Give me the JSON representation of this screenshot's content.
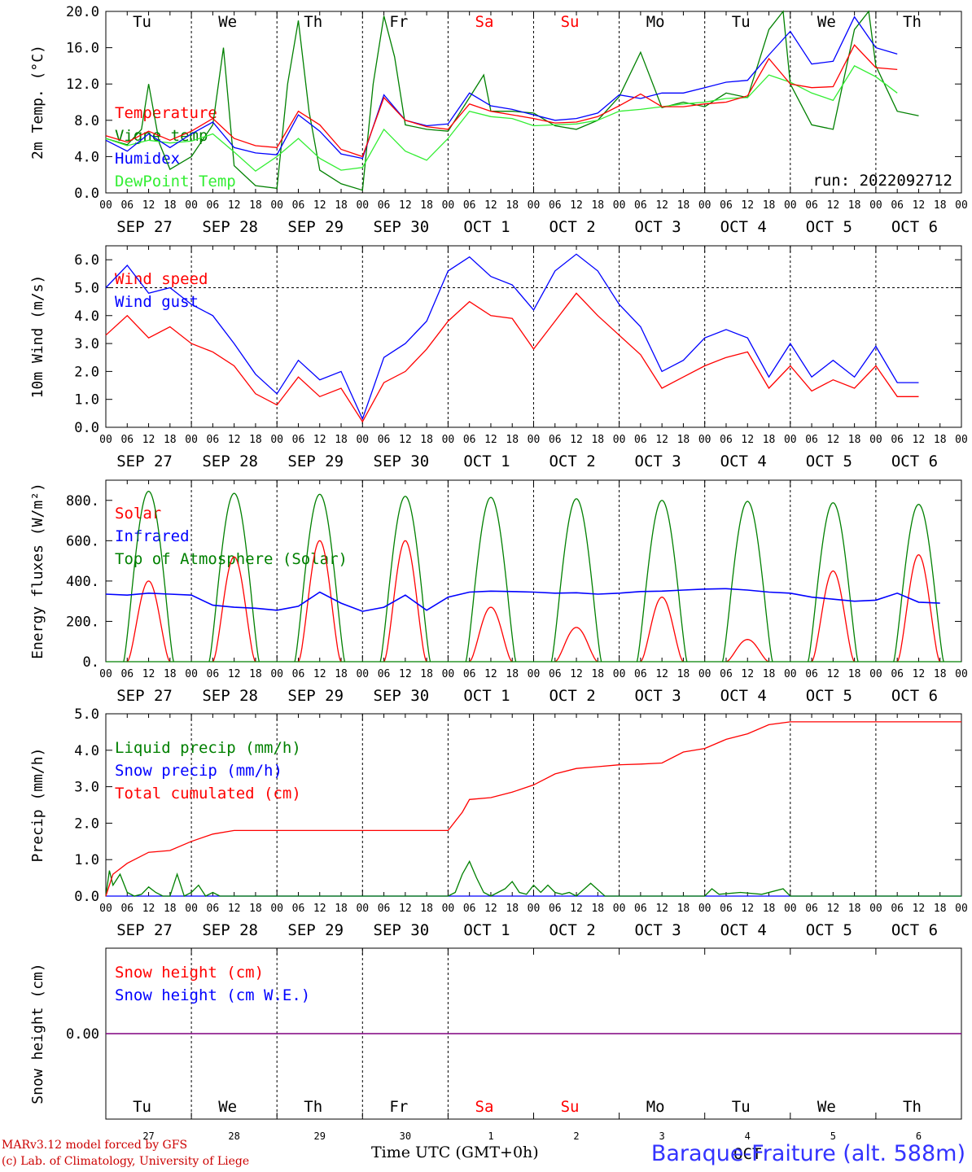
{
  "run_label": "run: 2022092712",
  "weekdays": [
    {
      "label": "Tu",
      "color": "#000000"
    },
    {
      "label": "We",
      "color": "#000000"
    },
    {
      "label": "Th",
      "color": "#000000"
    },
    {
      "label": "Fr",
      "color": "#000000"
    },
    {
      "label": "Sa",
      "color": "#ff0000"
    },
    {
      "label": "Su",
      "color": "#ff0000"
    },
    {
      "label": "Mo",
      "color": "#000000"
    },
    {
      "label": "Tu",
      "color": "#000000"
    },
    {
      "label": "We",
      "color": "#000000"
    },
    {
      "label": "Th",
      "color": "#000000"
    }
  ],
  "dates": [
    "SEP 27",
    "SEP 28",
    "SEP 29",
    "SEP 30",
    "OCT  1",
    "OCT  2",
    "OCT  3",
    "OCT  4",
    "OCT  5",
    "OCT  6"
  ],
  "hour_ticks": [
    "00",
    "06",
    "12",
    "18"
  ],
  "bottom_day_numbers": [
    "27",
    "28",
    "29",
    "30",
    "1",
    "2",
    "3",
    "4",
    "5",
    "6"
  ],
  "bottom_month": "OCT",
  "footer": {
    "model_line": "MARv3.12 model forced by GFS",
    "credit_line": "(c) Lab. of Climatology, University of Liege",
    "time_label": "Time UTC (GMT+0h)",
    "station": "Baraque-Fraiture (alt. 588m)"
  },
  "chart_data": [
    {
      "type": "line",
      "ylabel": "2m Temp. (°C)",
      "ylim": [
        0,
        20
      ],
      "yticks": [
        "0.0",
        "4.0",
        "8.0",
        "12.0",
        "16.0",
        "20.0"
      ],
      "x_unit": "hours since SEP 27 00 UTC",
      "xlim": [
        0,
        240
      ],
      "grid": "dotted midnight lines",
      "series": [
        {
          "name": "Temperature",
          "color": "#ff0000",
          "x": [
            0,
            6,
            12,
            15,
            18,
            24,
            30,
            36,
            42,
            48,
            54,
            60,
            66,
            72,
            78,
            84,
            90,
            96,
            102,
            108,
            114,
            120,
            126,
            132,
            138,
            144,
            150,
            156,
            162,
            168,
            174,
            180,
            186,
            192,
            198,
            204,
            210,
            216,
            222,
            228,
            234,
            240
          ],
          "values": [
            6.3,
            5.6,
            6.8,
            6.3,
            5.8,
            6.8,
            8.2,
            6.0,
            5.2,
            5.0,
            9.0,
            7.5,
            4.8,
            4.0,
            10.5,
            8.0,
            7.3,
            7.0,
            9.8,
            9.0,
            8.6,
            8.2,
            7.7,
            7.8,
            8.4,
            9.6,
            10.9,
            9.5,
            9.5,
            9.8,
            10.0,
            10.7,
            14.8,
            12.0,
            11.6,
            11.7,
            16.3,
            13.8,
            13.6,
            null,
            null,
            null
          ]
        },
        {
          "name": "Vigne temp",
          "color": "#008000",
          "x": [
            0,
            6,
            10,
            12,
            15,
            18,
            24,
            30,
            33,
            36,
            42,
            48,
            51,
            54,
            57,
            60,
            66,
            72,
            75,
            78,
            81,
            84,
            90,
            96,
            102,
            106,
            108,
            114,
            120,
            126,
            132,
            138,
            144,
            150,
            156,
            162,
            168,
            174,
            180,
            186,
            190,
            192,
            198,
            204,
            210,
            214,
            216,
            222,
            228,
            234,
            240
          ],
          "values": [
            6.0,
            5.3,
            7.0,
            12.0,
            5.5,
            2.6,
            4.0,
            7.5,
            16.0,
            3.0,
            0.8,
            0.5,
            12.0,
            19.0,
            9.0,
            2.5,
            1.0,
            0.3,
            12.0,
            19.5,
            15.0,
            7.5,
            7.0,
            6.8,
            10.5,
            13.0,
            9.0,
            9.0,
            8.8,
            7.4,
            7.0,
            8.0,
            10.6,
            15.5,
            9.4,
            10.0,
            9.5,
            11.0,
            10.5,
            18.0,
            20.0,
            12.0,
            7.5,
            7.0,
            18.0,
            21.0,
            14.0,
            9.0,
            8.5,
            null,
            null
          ]
        },
        {
          "name": "Humidex",
          "color": "#0000ff",
          "x": [
            0,
            6,
            12,
            18,
            24,
            30,
            36,
            42,
            48,
            54,
            60,
            66,
            72,
            78,
            84,
            90,
            96,
            102,
            108,
            114,
            120,
            126,
            132,
            138,
            144,
            150,
            156,
            162,
            168,
            174,
            180,
            186,
            192,
            198,
            204,
            210,
            216,
            222,
            228,
            234,
            240
          ],
          "values": [
            5.8,
            4.6,
            6.5,
            5.0,
            6.5,
            7.8,
            5.0,
            4.4,
            4.2,
            8.6,
            6.8,
            4.3,
            3.8,
            10.8,
            8.0,
            7.4,
            7.6,
            11.0,
            9.6,
            9.2,
            8.6,
            8.0,
            8.2,
            8.8,
            10.8,
            10.4,
            11.0,
            11.0,
            11.6,
            12.2,
            12.4,
            15.2,
            17.8,
            14.2,
            14.5,
            19.4,
            16.0,
            15.3,
            null,
            null,
            null
          ]
        },
        {
          "name": "DewPoint Temp",
          "color": "#33ee33",
          "x": [
            0,
            6,
            12,
            18,
            24,
            30,
            36,
            42,
            48,
            54,
            60,
            66,
            72,
            78,
            84,
            90,
            96,
            102,
            108,
            114,
            120,
            126,
            132,
            138,
            144,
            150,
            156,
            162,
            168,
            174,
            180,
            186,
            192,
            198,
            204,
            210,
            216,
            222,
            228,
            234,
            240
          ],
          "values": [
            6.0,
            5.2,
            5.8,
            5.5,
            5.7,
            6.5,
            4.5,
            2.4,
            4.0,
            6.0,
            3.8,
            2.5,
            2.8,
            7.0,
            4.6,
            3.6,
            6.0,
            9.0,
            8.4,
            8.2,
            7.4,
            7.5,
            7.6,
            8.0,
            9.0,
            9.2,
            9.5,
            9.8,
            10.0,
            10.4,
            10.5,
            13.0,
            12.2,
            11.0,
            10.2,
            14.0,
            12.8,
            11.0,
            null,
            null,
            null
          ]
        }
      ]
    },
    {
      "type": "line",
      "ylabel": "10m Wind (m/s)",
      "ylim": [
        0,
        6.5
      ],
      "yticks": [
        "0.0",
        "1.0",
        "2.0",
        "3.0",
        "4.0",
        "5.0",
        "6.0"
      ],
      "xlim": [
        0,
        240
      ],
      "series": [
        {
          "name": "Wind speed",
          "color": "#ff0000",
          "x": [
            0,
            6,
            12,
            18,
            24,
            30,
            36,
            42,
            48,
            54,
            60,
            66,
            72,
            78,
            84,
            90,
            96,
            102,
            108,
            114,
            120,
            126,
            132,
            138,
            144,
            150,
            156,
            162,
            168,
            174,
            180,
            186,
            192,
            198,
            204,
            210,
            216,
            222,
            228,
            234,
            240
          ],
          "values": [
            3.3,
            4.0,
            3.2,
            3.6,
            3.0,
            2.7,
            2.2,
            1.2,
            0.8,
            1.8,
            1.1,
            1.4,
            0.2,
            1.6,
            2.0,
            2.8,
            3.8,
            4.5,
            4.0,
            3.9,
            2.8,
            3.8,
            4.8,
            4.0,
            3.3,
            2.6,
            1.4,
            1.8,
            2.2,
            2.5,
            2.7,
            1.4,
            2.2,
            1.3,
            1.7,
            1.4,
            2.2,
            1.1,
            1.1,
            null,
            null
          ]
        },
        {
          "name": "Wind gust",
          "color": "#0000ff",
          "x": [
            0,
            6,
            12,
            18,
            24,
            30,
            36,
            42,
            48,
            54,
            60,
            66,
            72,
            78,
            84,
            90,
            96,
            102,
            108,
            114,
            120,
            126,
            132,
            138,
            144,
            150,
            156,
            162,
            168,
            174,
            180,
            186,
            192,
            198,
            204,
            210,
            216,
            222,
            228,
            234,
            240
          ],
          "values": [
            5.0,
            5.8,
            4.8,
            5.0,
            4.4,
            4.0,
            3.0,
            1.9,
            1.2,
            2.4,
            1.7,
            2.0,
            0.3,
            2.5,
            3.0,
            3.8,
            5.6,
            6.1,
            5.4,
            5.1,
            4.2,
            5.6,
            6.2,
            5.6,
            4.4,
            3.6,
            2.0,
            2.4,
            3.2,
            3.5,
            3.2,
            1.8,
            3.0,
            1.8,
            2.4,
            1.8,
            2.9,
            1.6,
            1.6,
            null,
            null
          ]
        }
      ]
    },
    {
      "type": "line",
      "ylabel": "Energy fluxes (W/m²)",
      "ylim": [
        0,
        900
      ],
      "yticks": [
        "0.",
        "200.",
        "400.",
        "600.",
        "800."
      ],
      "xlim": [
        0,
        240
      ],
      "toa_peaks": [
        845,
        835,
        830,
        820,
        815,
        808,
        800,
        795,
        788,
        780
      ],
      "solar_peaks": [
        400,
        520,
        600,
        600,
        270,
        170,
        320,
        110,
        450,
        530
      ],
      "series": [
        {
          "name": "Solar",
          "color": "#ff0000"
        },
        {
          "name": "Infrared",
          "color": "#0000ff",
          "x": [
            0,
            6,
            12,
            18,
            24,
            30,
            36,
            42,
            48,
            54,
            60,
            66,
            72,
            78,
            84,
            90,
            96,
            102,
            108,
            114,
            120,
            126,
            132,
            138,
            144,
            150,
            156,
            162,
            168,
            174,
            180,
            186,
            192,
            198,
            204,
            210,
            216,
            222,
            228,
            234,
            240
          ],
          "values": [
            335,
            330,
            340,
            335,
            330,
            280,
            270,
            265,
            255,
            275,
            345,
            290,
            250,
            270,
            330,
            255,
            320,
            345,
            350,
            348,
            345,
            340,
            342,
            335,
            340,
            348,
            350,
            355,
            360,
            362,
            355,
            345,
            340,
            320,
            310,
            300,
            305,
            340,
            295,
            290,
            null
          ]
        },
        {
          "name": "Top of Atmosphere (Solar)",
          "color": "#008000"
        }
      ]
    },
    {
      "type": "line",
      "ylabel": "Precip (mm/h)",
      "ylim": [
        0,
        5
      ],
      "yticks": [
        "0.0",
        "1.0",
        "2.0",
        "3.0",
        "4.0",
        "5.0"
      ],
      "xlim": [
        0,
        240
      ],
      "series": [
        {
          "name": "Liquid precip (mm/h)",
          "color": "#008000",
          "x": [
            0,
            1,
            2,
            4,
            6,
            8,
            10,
            12,
            14,
            16,
            18,
            20,
            22,
            24,
            26,
            28,
            30,
            32,
            36,
            48,
            96,
            98,
            100,
            102,
            104,
            106,
            108,
            110,
            112,
            114,
            116,
            118,
            120,
            122,
            124,
            126,
            128,
            130,
            132,
            136,
            140,
            144,
            168,
            170,
            172,
            178,
            184,
            190,
            192,
            240
          ],
          "values": [
            0.0,
            0.7,
            0.3,
            0.6,
            0.1,
            0.0,
            0.05,
            0.25,
            0.1,
            0.0,
            0.0,
            0.6,
            0.0,
            0.1,
            0.3,
            0.0,
            0.1,
            0.0,
            0.0,
            0.0,
            0.0,
            0.1,
            0.6,
            0.95,
            0.5,
            0.1,
            0.0,
            0.1,
            0.2,
            0.4,
            0.1,
            0.05,
            0.3,
            0.1,
            0.3,
            0.1,
            0.05,
            0.1,
            0.0,
            0.35,
            0.0,
            0.0,
            0.0,
            0.2,
            0.05,
            0.1,
            0.05,
            0.2,
            0.0,
            0.0
          ]
        },
        {
          "name": "Snow precip (mm/h)",
          "color": "#0000ff"
        },
        {
          "name": "Total cumulated (cm)",
          "color": "#ff0000",
          "x": [
            0,
            2,
            6,
            12,
            18,
            24,
            30,
            36,
            48,
            60,
            72,
            84,
            96,
            100,
            102,
            108,
            114,
            120,
            126,
            132,
            138,
            144,
            150,
            156,
            162,
            168,
            174,
            180,
            186,
            192,
            240
          ],
          "values": [
            0.0,
            0.6,
            0.9,
            1.2,
            1.25,
            1.5,
            1.7,
            1.8,
            1.8,
            1.8,
            1.8,
            1.8,
            1.8,
            2.3,
            2.65,
            2.7,
            2.85,
            3.05,
            3.35,
            3.5,
            3.55,
            3.6,
            3.62,
            3.65,
            3.95,
            4.05,
            4.3,
            4.45,
            4.7,
            4.78,
            4.78
          ]
        }
      ]
    },
    {
      "type": "line",
      "ylabel": "Snow height (cm)",
      "yticks": [
        "0.00"
      ],
      "xlim": [
        0,
        240
      ],
      "series": [
        {
          "name": "Snow height (cm)",
          "color": "#ff0000",
          "x": [
            0,
            240
          ],
          "values": [
            0,
            0
          ]
        },
        {
          "name": "Snow height (cm W.E.)",
          "color": "#0000ff",
          "x": [
            0,
            240
          ],
          "values": [
            0,
            0
          ]
        }
      ]
    }
  ]
}
